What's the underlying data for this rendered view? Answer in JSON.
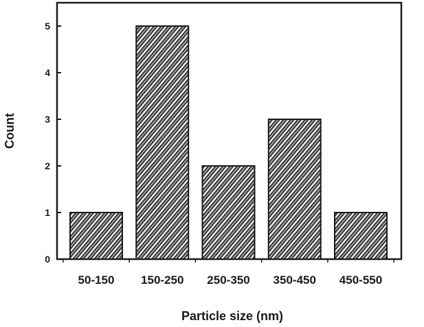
{
  "chart_data": {
    "type": "bar",
    "categories": [
      "50-150",
      "150-250",
      "250-350",
      "350-450",
      "450-550"
    ],
    "values": [
      1,
      5,
      2,
      3,
      1
    ],
    "xlabel": "Particle size (nm)",
    "ylabel": "Count",
    "ylim": [
      0,
      5.5
    ],
    "yticks": [
      "0",
      "1",
      "2",
      "3",
      "4",
      "5"
    ],
    "grid": false,
    "legend": "none",
    "bar_pattern": "diagonal-hatch",
    "colors": {
      "bar_fill": "#3a3a3a",
      "hatch": "#ffffff",
      "axis": "#1a1a1a"
    }
  }
}
